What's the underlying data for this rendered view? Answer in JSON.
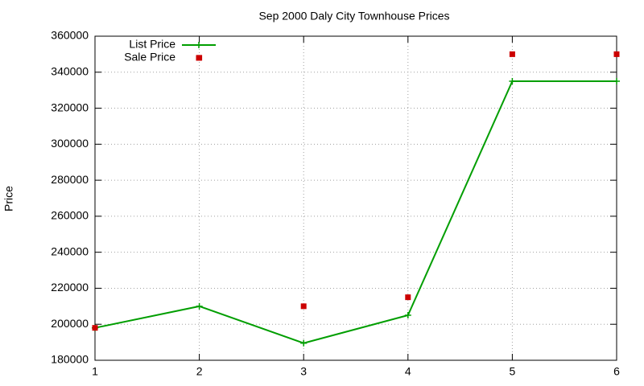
{
  "chart_data": {
    "type": "line",
    "title": "Sep 2000 Daly City Townhouse Prices",
    "y_label": "Price",
    "x": [
      1,
      2,
      3,
      4,
      5,
      6
    ],
    "series": [
      {
        "name": "List Price",
        "color": "#009e00",
        "mode": "lines+markers",
        "values": [
          198000,
          210000,
          189500,
          205000,
          335000,
          335000
        ]
      },
      {
        "name": "Sale Price",
        "color": "#cc0000",
        "mode": "markers",
        "values": [
          198000,
          348000,
          210000,
          215000,
          350000,
          350000
        ]
      }
    ],
    "xlim": [
      1,
      6
    ],
    "xticks": [
      1,
      2,
      3,
      4,
      5,
      6
    ],
    "ylim": [
      180000,
      360000
    ],
    "yticks": [
      180000,
      200000,
      220000,
      240000,
      260000,
      280000,
      300000,
      320000,
      340000,
      360000
    ],
    "grid": true,
    "legend": "top-left"
  }
}
